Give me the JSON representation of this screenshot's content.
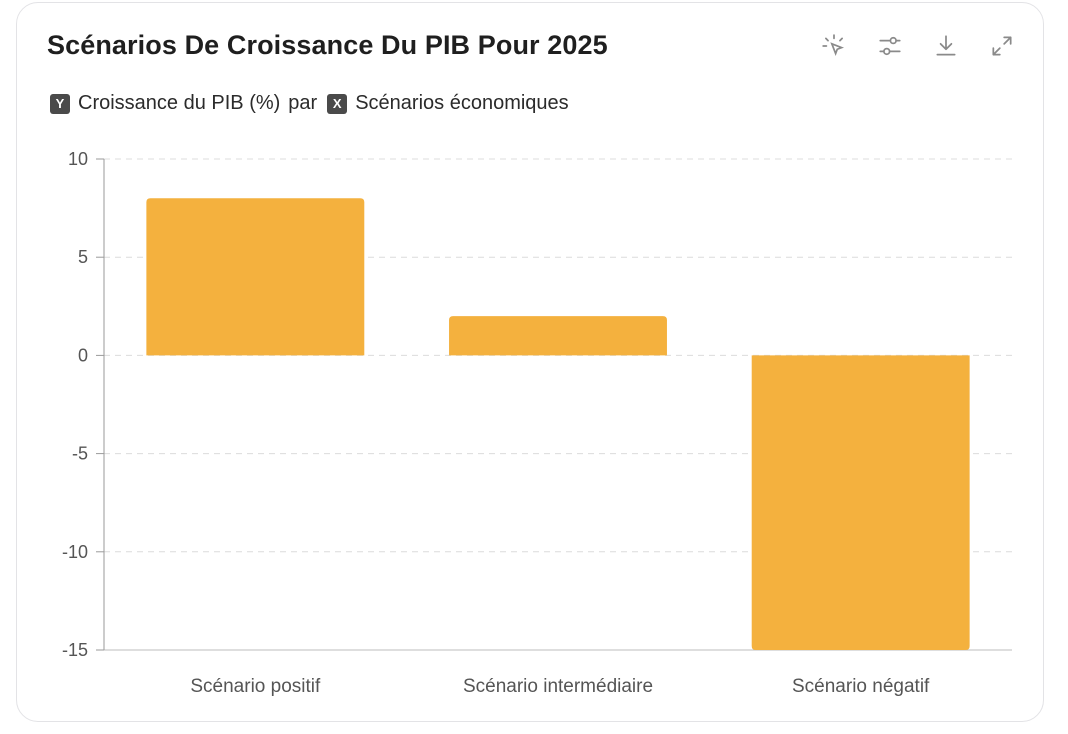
{
  "header": {
    "title": "Scénarios De Croissance Du PIB Pour 2025",
    "y_badge": "Y",
    "x_badge": "X",
    "y_label": "Croissance du PIB (%)",
    "connector": "par",
    "x_label": "Scénarios économiques"
  },
  "toolbar": {
    "icons": [
      "select-icon",
      "sliders-icon",
      "download-icon",
      "expand-icon"
    ]
  },
  "colors": {
    "bar": "#F4B13E",
    "grid": "#dcdcdc",
    "axis": "#555555"
  },
  "chart_data": {
    "type": "bar",
    "categories": [
      "Scénario positif",
      "Scénario intermédiaire",
      "Scénario négatif"
    ],
    "values": [
      8,
      2,
      -15
    ],
    "xlabel": "Scénarios économiques",
    "ylabel": "Croissance du PIB (%)",
    "ylim": [
      -15,
      10
    ],
    "yticks": [
      10,
      5,
      0,
      -5,
      -10,
      -15
    ],
    "grid": true
  }
}
